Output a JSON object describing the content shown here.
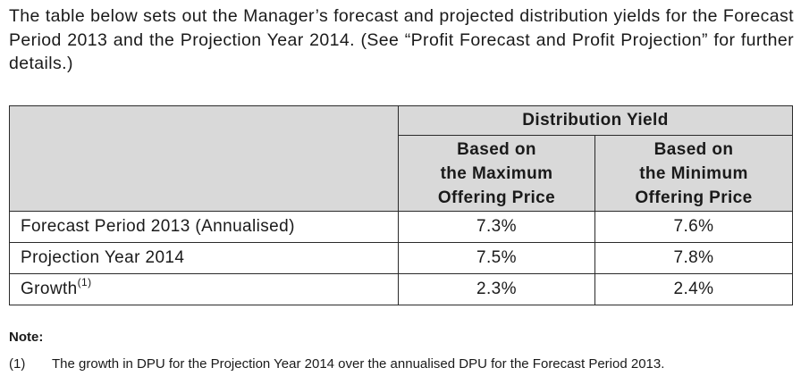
{
  "intro": {
    "text": "The table below sets out the Manager’s forecast and projected distribution yields for the Forecast Period 2013 and the Projection Year 2014. (See “Profit Forecast and Profit Projection” for further details.)"
  },
  "table": {
    "group_header": "Distribution Yield",
    "col1": {
      "line1": "Based on",
      "line2": "the Maximum",
      "line3": "Offering Price"
    },
    "col2": {
      "line1": "Based on",
      "line2": "the Minimum",
      "line3": "Offering Price"
    },
    "rows": [
      {
        "label": "Forecast Period 2013 (Annualised)",
        "sup": "",
        "max": "7.3%",
        "min": "7.6%"
      },
      {
        "label": "Projection Year 2014",
        "sup": "",
        "max": "7.5%",
        "min": "7.8%"
      },
      {
        "label": "Growth",
        "sup": "(1)",
        "max": "2.3%",
        "min": "2.4%"
      }
    ]
  },
  "note": {
    "title": "Note:",
    "items": [
      {
        "num": "(1)",
        "text": "The growth in DPU for the Projection Year 2014 over the annualised DPU for the Forecast Period 2013."
      }
    ]
  }
}
